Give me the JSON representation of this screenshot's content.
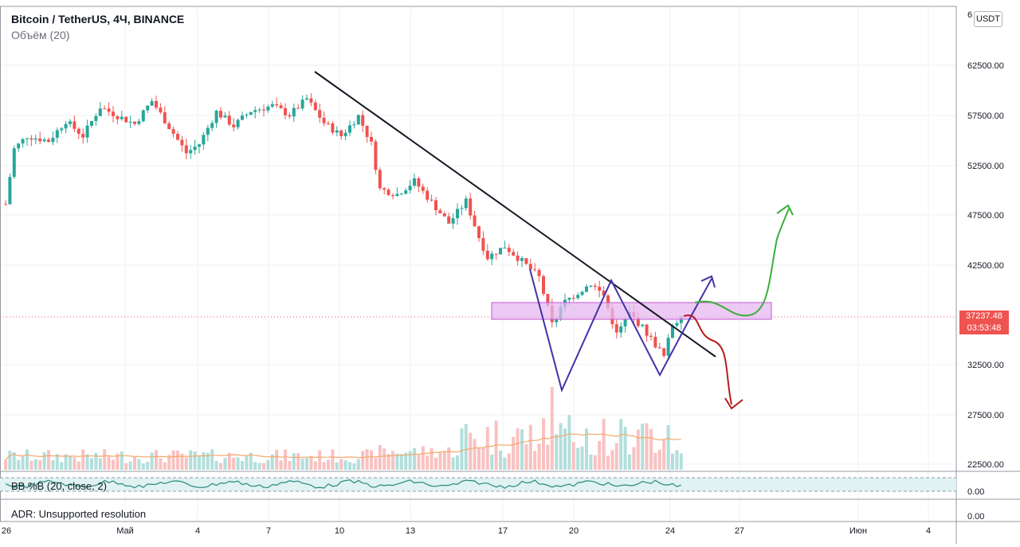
{
  "header": {
    "symbol": "Bitcoin / TetherUS, 4Ч, BINANCE",
    "volume_label": "Объём (20)",
    "currency": "USDT"
  },
  "indicators": {
    "bb_label": "BB %B (20, close, 2)",
    "adr_label": "ADR: Unsupported resolution"
  },
  "price_tag": {
    "price": "37237.48",
    "countdown": "03:53:48"
  },
  "colors": {
    "up": "#26a69a",
    "down": "#ef5350",
    "trendline": "#131722",
    "pattern": "#4331a8",
    "zone": "#c455d6",
    "bull_arrow": "#3cae3c",
    "bear_arrow": "#b71c1c",
    "vol_ma": "#f3a96b",
    "bb_line": "#26897d",
    "bb_fill": "#e0f2f1"
  },
  "chart_data": {
    "type": "candlestick",
    "title": "Bitcoin / TetherUS, 4Ч, BINANCE",
    "y_ticks": [
      "62500.00",
      "57500.00",
      "52500.00",
      "47500.00",
      "42500.00",
      "32500.00",
      "27500.00",
      "22500.00"
    ],
    "ylim": [
      21000,
      66500
    ],
    "x_ticks": [
      "26",
      "Май",
      "4",
      "7",
      "10",
      "13",
      "17",
      "20",
      "24",
      "27",
      "Июн",
      "4"
    ],
    "close_path": [
      {
        "t": 0,
        "p": 48500
      },
      {
        "t": 2,
        "p": 54000
      },
      {
        "t": 5,
        "p": 55300
      },
      {
        "t": 10,
        "p": 54800
      },
      {
        "t": 14,
        "p": 56800
      },
      {
        "t": 18,
        "p": 55300
      },
      {
        "t": 22,
        "p": 58200
      },
      {
        "t": 26,
        "p": 57300
      },
      {
        "t": 30,
        "p": 56500
      },
      {
        "t": 34,
        "p": 58800
      },
      {
        "t": 38,
        "p": 56200
      },
      {
        "t": 42,
        "p": 53600
      },
      {
        "t": 45,
        "p": 54500
      },
      {
        "t": 49,
        "p": 57700
      },
      {
        "t": 53,
        "p": 56300
      },
      {
        "t": 57,
        "p": 57800
      },
      {
        "t": 62,
        "p": 58300
      },
      {
        "t": 66,
        "p": 57400
      },
      {
        "t": 70,
        "p": 59000
      },
      {
        "t": 74,
        "p": 56600
      },
      {
        "t": 78,
        "p": 55300
      },
      {
        "t": 82,
        "p": 57300
      },
      {
        "t": 85,
        "p": 54500
      },
      {
        "t": 87,
        "p": 50000
      },
      {
        "t": 91,
        "p": 49500
      },
      {
        "t": 95,
        "p": 50800
      },
      {
        "t": 99,
        "p": 48700
      },
      {
        "t": 103,
        "p": 46600
      },
      {
        "t": 107,
        "p": 48800
      },
      {
        "t": 110,
        "p": 45200
      },
      {
        "t": 112,
        "p": 43200
      },
      {
        "t": 116,
        "p": 44300
      },
      {
        "t": 120,
        "p": 42800
      },
      {
        "t": 124,
        "p": 41200
      },
      {
        "t": 127,
        "p": 36500
      },
      {
        "t": 130,
        "p": 38800
      },
      {
        "t": 133,
        "p": 39700
      },
      {
        "t": 136,
        "p": 40600
      },
      {
        "t": 139,
        "p": 39400
      },
      {
        "t": 142,
        "p": 35500
      },
      {
        "t": 145,
        "p": 37600
      },
      {
        "t": 148,
        "p": 36200
      },
      {
        "t": 151,
        "p": 34500
      },
      {
        "t": 153,
        "p": 33300
      },
      {
        "t": 155,
        "p": 36500
      },
      {
        "t": 157,
        "p": 37237.48
      }
    ],
    "last_price": 37237.48,
    "annotations": {
      "trendline": [
        {
          "date": "Май 9",
          "p": 61800
        },
        {
          "date": "Май 26",
          "p": 33300
        }
      ],
      "zone": {
        "from": "Май 17",
        "to": "Май 28",
        "p_low": 37200,
        "p_high": 38800
      },
      "double_bottom": [
        {
          "p": 42000
        },
        {
          "p": 30000
        },
        {
          "p": 41000
        },
        {
          "p": 31300
        },
        {
          "p": 41200
        }
      ],
      "bull_scenario_target": 48500,
      "bear_scenario_target": 28000
    },
    "volume": {
      "label": "Объём (20)"
    },
    "bb_percent_b": {
      "label": "BB %B (20, close, 2)",
      "ticks": [
        "0.00"
      ]
    },
    "adr": {
      "label": "ADR: Unsupported resolution",
      "ticks": [
        "0.00"
      ]
    }
  }
}
